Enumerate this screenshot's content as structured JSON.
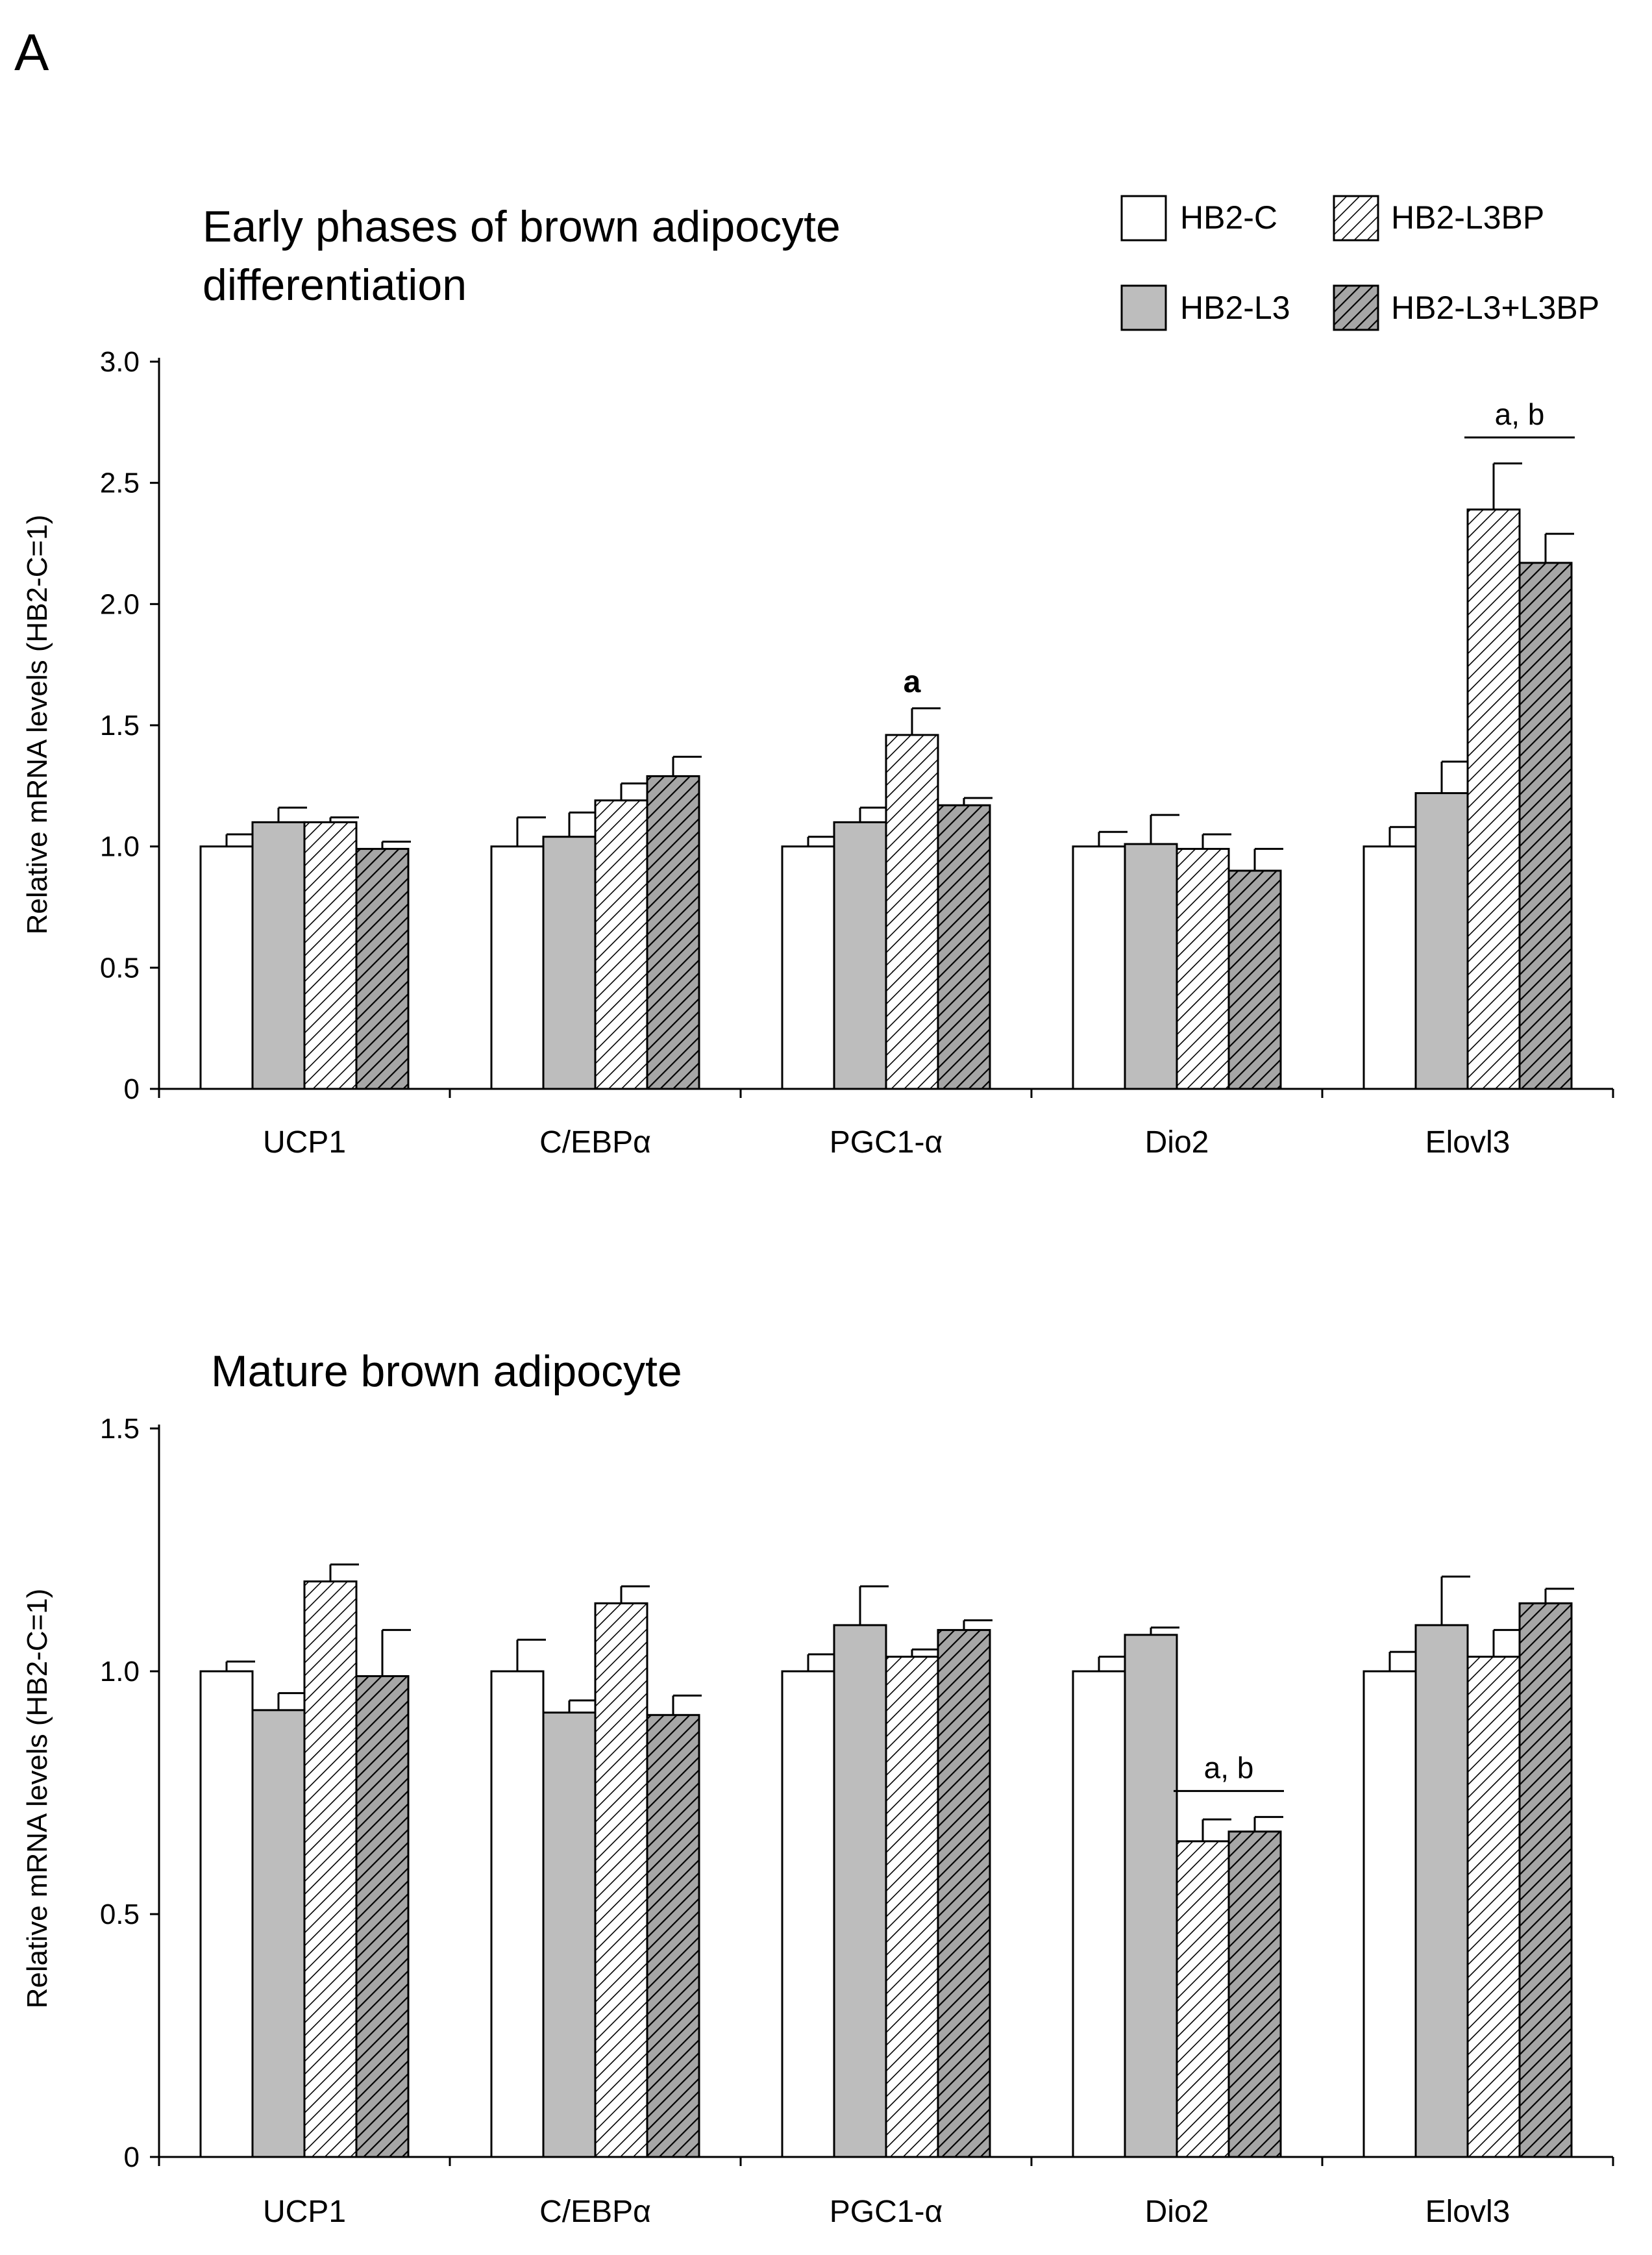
{
  "panel_label": "A",
  "colors": {
    "HB2-C": "#ffffff",
    "HB2-L3": "#bdbdbd",
    "HB2-L3BP": "#ffffff",
    "HB2-L3+L3BP": "#9a9a9a",
    "stroke": "#000000"
  },
  "legend": [
    {
      "name": "HB2-C",
      "fill": "white"
    },
    {
      "name": "HB2-L3BP",
      "fill": "light-hatch"
    },
    {
      "name": "HB2-L3",
      "fill": "gray"
    },
    {
      "name": "HB2-L3+L3BP",
      "fill": "dark-hatch"
    }
  ],
  "chart_data": [
    {
      "type": "bar",
      "title_lines": [
        "Early phases of brown adipocyte",
        "differentiation"
      ],
      "ylabel": "Relative  mRNA levels  (HB2-C=1)",
      "xlabel": "",
      "ylim": [
        0,
        3.0
      ],
      "yticks": [
        {
          "value": 0,
          "label": "0"
        },
        {
          "value": 0.5,
          "label": "0.5"
        },
        {
          "value": 1.0,
          "label": "1.0"
        },
        {
          "value": 1.5,
          "label": "1.5"
        },
        {
          "value": 2.0,
          "label": "2.0"
        },
        {
          "value": 2.5,
          "label": "2.5"
        },
        {
          "value": 3.0,
          "label": "3.0"
        }
      ],
      "categories": [
        "UCP1",
        "C/EBPα",
        "PGC1-α",
        "Dio2",
        "Elovl3"
      ],
      "series": [
        {
          "name": "HB2-C",
          "values": [
            1.0,
            1.0,
            1.0,
            1.0,
            1.0
          ],
          "errors": [
            0.05,
            0.12,
            0.04,
            0.06,
            0.08
          ]
        },
        {
          "name": "HB2-L3",
          "values": [
            1.1,
            1.04,
            1.1,
            1.01,
            1.22
          ],
          "errors": [
            0.06,
            0.1,
            0.06,
            0.12,
            0.13
          ]
        },
        {
          "name": "HB2-L3BP",
          "values": [
            1.1,
            1.19,
            1.46,
            0.99,
            2.39
          ],
          "errors": [
            0.02,
            0.07,
            0.11,
            0.06,
            0.19
          ]
        },
        {
          "name": "HB2-L3+L3BP",
          "values": [
            0.99,
            1.29,
            1.17,
            0.9,
            2.17
          ],
          "errors": [
            0.03,
            0.08,
            0.03,
            0.09,
            0.12
          ]
        }
      ],
      "annotations": [
        {
          "text": "a",
          "category": "PGC1-α",
          "series": [
            "HB2-L3BP"
          ],
          "style": "bold"
        },
        {
          "text": "a, b",
          "category": "Elovl3",
          "series": [
            "HB2-L3BP",
            "HB2-L3+L3BP"
          ],
          "style": "bracket"
        }
      ]
    },
    {
      "type": "bar",
      "title_lines": [
        "Mature brown adipocyte"
      ],
      "ylabel": "Relative  mRNA levels  (HB2-C=1)",
      "xlabel": "",
      "ylim": [
        0,
        1.5
      ],
      "yticks": [
        {
          "value": 0,
          "label": "0"
        },
        {
          "value": 0.5,
          "label": "0.5"
        },
        {
          "value": 1.0,
          "label": "1.0"
        },
        {
          "value": 1.5,
          "label": "1.5"
        }
      ],
      "categories": [
        "UCP1",
        "C/EBPα",
        "PGC1-α",
        "Dio2",
        "Elovl3"
      ],
      "series": [
        {
          "name": "HB2-C",
          "values": [
            1.0,
            1.0,
            1.0,
            1.0,
            1.0
          ],
          "errors": [
            0.02,
            0.065,
            0.035,
            0.03,
            0.04
          ]
        },
        {
          "name": "HB2-L3",
          "values": [
            0.92,
            0.915,
            1.095,
            1.075,
            1.095
          ],
          "errors": [
            0.035,
            0.025,
            0.08,
            0.015,
            0.1
          ]
        },
        {
          "name": "HB2-L3BP",
          "values": [
            1.185,
            1.14,
            1.03,
            0.65,
            1.03
          ],
          "errors": [
            0.035,
            0.035,
            0.015,
            0.045,
            0.055
          ]
        },
        {
          "name": "HB2-L3+L3BP",
          "values": [
            0.99,
            0.91,
            1.085,
            0.67,
            1.14
          ],
          "errors": [
            0.095,
            0.04,
            0.02,
            0.03,
            0.03
          ]
        }
      ],
      "annotations": [
        {
          "text": "a, b",
          "category": "Dio2",
          "series": [
            "HB2-L3BP",
            "HB2-L3+L3BP"
          ],
          "style": "bracket"
        }
      ]
    }
  ]
}
